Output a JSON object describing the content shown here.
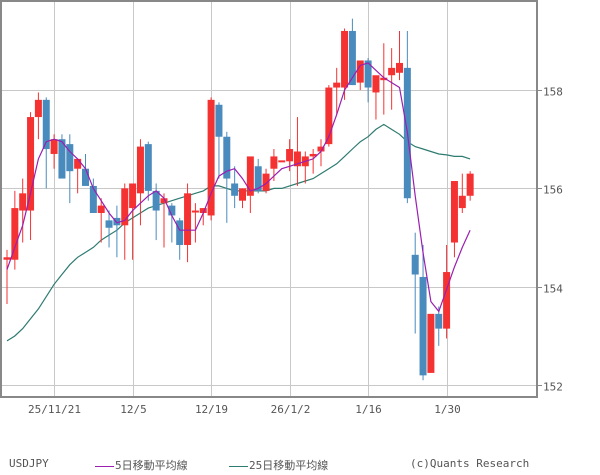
{
  "chart_data": {
    "type": "candlestick",
    "title": "USDJPY",
    "ylim": [
      151.8,
      160.0
    ],
    "y_ticks": [
      152,
      154,
      156,
      158
    ],
    "x_tick_labels": [
      {
        "label": "25/11/21",
        "index": 6
      },
      {
        "label": "12/5",
        "index": 16
      },
      {
        "label": "12/19",
        "index": 26
      },
      {
        "label": "26/1/2",
        "index": 36
      },
      {
        "label": "1/16",
        "index": 46
      },
      {
        "label": "1/30",
        "index": 56
      }
    ],
    "grid": true,
    "legend": [
      {
        "name": "5日移動平均線",
        "color": "#9a1fb0"
      },
      {
        "name": "25日移動平均線",
        "color": "#2e7b72"
      }
    ],
    "colors": {
      "up": "#f53232",
      "down": "#4a8bbd",
      "grid": "#c8c8c8",
      "axis": "#888888"
    },
    "candles": [
      {
        "o": 154.55,
        "h": 154.75,
        "l": 153.65,
        "c": 154.6
      },
      {
        "o": 154.55,
        "h": 155.95,
        "l": 154.35,
        "c": 155.6
      },
      {
        "o": 155.55,
        "h": 156.2,
        "l": 154.9,
        "c": 155.9
      },
      {
        "o": 155.55,
        "h": 157.55,
        "l": 154.95,
        "c": 157.45
      },
      {
        "o": 157.45,
        "h": 157.95,
        "l": 157.0,
        "c": 157.8
      },
      {
        "o": 157.8,
        "h": 157.85,
        "l": 156.0,
        "c": 156.8
      },
      {
        "o": 156.7,
        "h": 157.1,
        "l": 156.4,
        "c": 157.0
      },
      {
        "o": 157.0,
        "h": 157.1,
        "l": 156.25,
        "c": 156.2
      },
      {
        "o": 156.9,
        "h": 157.1,
        "l": 155.7,
        "c": 156.35
      },
      {
        "o": 156.4,
        "h": 156.6,
        "l": 155.9,
        "c": 156.6
      },
      {
        "o": 156.4,
        "h": 156.7,
        "l": 156.1,
        "c": 156.05
      },
      {
        "o": 156.05,
        "h": 156.2,
        "l": 155.55,
        "c": 155.5
      },
      {
        "o": 155.5,
        "h": 155.8,
        "l": 154.9,
        "c": 155.65
      },
      {
        "o": 155.35,
        "h": 155.55,
        "l": 154.8,
        "c": 155.2
      },
      {
        "o": 155.4,
        "h": 155.65,
        "l": 154.6,
        "c": 155.25
      },
      {
        "o": 155.25,
        "h": 156.1,
        "l": 154.55,
        "c": 156.0
      },
      {
        "o": 155.6,
        "h": 155.85,
        "l": 154.55,
        "c": 156.1
      },
      {
        "o": 155.9,
        "h": 157.0,
        "l": 155.25,
        "c": 156.85
      },
      {
        "o": 156.9,
        "h": 156.95,
        "l": 155.75,
        "c": 155.95
      },
      {
        "o": 155.95,
        "h": 156.1,
        "l": 154.95,
        "c": 155.55
      },
      {
        "o": 155.7,
        "h": 155.9,
        "l": 154.8,
        "c": 155.8
      },
      {
        "o": 155.65,
        "h": 155.7,
        "l": 154.9,
        "c": 155.45
      },
      {
        "o": 155.35,
        "h": 155.4,
        "l": 154.55,
        "c": 154.85
      },
      {
        "o": 154.85,
        "h": 156.1,
        "l": 154.5,
        "c": 155.9
      },
      {
        "o": 155.55,
        "h": 155.7,
        "l": 154.9,
        "c": 155.55
      },
      {
        "o": 155.5,
        "h": 155.6,
        "l": 155.25,
        "c": 155.6
      },
      {
        "o": 155.45,
        "h": 157.85,
        "l": 155.35,
        "c": 157.8
      },
      {
        "o": 157.7,
        "h": 157.75,
        "l": 156.2,
        "c": 157.05
      },
      {
        "o": 157.05,
        "h": 157.15,
        "l": 155.3,
        "c": 156.2
      },
      {
        "o": 156.1,
        "h": 156.45,
        "l": 155.6,
        "c": 155.85
      },
      {
        "o": 155.75,
        "h": 156.0,
        "l": 155.6,
        "c": 156.0
      },
      {
        "o": 155.85,
        "h": 156.55,
        "l": 155.5,
        "c": 156.65
      },
      {
        "o": 156.45,
        "h": 156.6,
        "l": 155.9,
        "c": 155.95
      },
      {
        "o": 155.95,
        "h": 156.4,
        "l": 155.9,
        "c": 156.3
      },
      {
        "o": 156.4,
        "h": 156.8,
        "l": 156.15,
        "c": 156.65
      },
      {
        "o": 156.55,
        "h": 156.55,
        "l": 156.55,
        "c": 156.57
      },
      {
        "o": 156.55,
        "h": 157.0,
        "l": 156.35,
        "c": 156.8
      },
      {
        "o": 156.45,
        "h": 157.45,
        "l": 156.05,
        "c": 156.75
      },
      {
        "o": 156.45,
        "h": 156.75,
        "l": 156.1,
        "c": 156.65
      },
      {
        "o": 156.65,
        "h": 156.8,
        "l": 156.3,
        "c": 156.7
      },
      {
        "o": 156.75,
        "h": 157.0,
        "l": 156.45,
        "c": 156.85
      },
      {
        "o": 156.9,
        "h": 158.1,
        "l": 156.85,
        "c": 158.05
      },
      {
        "o": 158.05,
        "h": 158.45,
        "l": 157.5,
        "c": 158.15
      },
      {
        "o": 158.05,
        "h": 159.25,
        "l": 157.8,
        "c": 159.2
      },
      {
        "o": 159.2,
        "h": 159.45,
        "l": 158.1,
        "c": 158.1
      },
      {
        "o": 158.15,
        "h": 158.55,
        "l": 158.0,
        "c": 158.6
      },
      {
        "o": 158.6,
        "h": 158.65,
        "l": 157.75,
        "c": 158.05
      },
      {
        "o": 157.95,
        "h": 158.2,
        "l": 157.4,
        "c": 158.3
      },
      {
        "o": 158.2,
        "h": 158.95,
        "l": 157.5,
        "c": 158.25
      },
      {
        "o": 158.3,
        "h": 158.85,
        "l": 157.6,
        "c": 158.45
      },
      {
        "o": 158.35,
        "h": 159.2,
        "l": 158.2,
        "c": 158.55
      },
      {
        "o": 158.45,
        "h": 159.2,
        "l": 155.7,
        "c": 155.8
      },
      {
        "o": 154.65,
        "h": 155.1,
        "l": 153.05,
        "c": 154.25
      },
      {
        "o": 154.2,
        "h": 154.85,
        "l": 152.1,
        "c": 152.2
      },
      {
        "o": 152.25,
        "h": 153.4,
        "l": 152.25,
        "c": 153.45
      },
      {
        "o": 153.45,
        "h": 153.6,
        "l": 152.8,
        "c": 153.15
      },
      {
        "o": 153.15,
        "h": 154.85,
        "l": 152.95,
        "c": 154.3
      },
      {
        "o": 154.9,
        "h": 156.0,
        "l": 154.6,
        "c": 156.15
      },
      {
        "o": 155.6,
        "h": 156.3,
        "l": 155.5,
        "c": 155.85
      },
      {
        "o": 155.85,
        "h": 156.35,
        "l": 155.75,
        "c": 156.3
      }
    ],
    "ma5": [
      154.35,
      154.8,
      155.25,
      155.9,
      156.6,
      156.95,
      157.0,
      156.95,
      156.75,
      156.6,
      156.4,
      156.0,
      155.75,
      155.5,
      155.3,
      155.35,
      155.55,
      155.7,
      155.85,
      155.95,
      155.8,
      155.45,
      155.15,
      155.15,
      155.15,
      155.5,
      155.9,
      156.25,
      156.35,
      156.4,
      156.2,
      155.95,
      156.0,
      156.1,
      156.25,
      156.4,
      156.45,
      156.5,
      156.55,
      156.6,
      156.75,
      157.05,
      157.5,
      158.0,
      158.25,
      158.5,
      158.55,
      158.4,
      158.25,
      158.15,
      158.05,
      157.15,
      155.85,
      154.7,
      153.7,
      153.5,
      153.95,
      154.4,
      154.8,
      155.15
    ],
    "ma25": [
      152.9,
      153.0,
      153.15,
      153.35,
      153.55,
      153.8,
      154.05,
      154.25,
      154.45,
      154.6,
      154.7,
      154.8,
      154.95,
      155.05,
      155.15,
      155.3,
      155.4,
      155.5,
      155.6,
      155.65,
      155.7,
      155.75,
      155.8,
      155.85,
      155.9,
      155.95,
      156.05,
      156.05,
      156.0,
      155.95,
      155.95,
      155.95,
      155.95,
      155.95,
      156.0,
      156.0,
      156.05,
      156.1,
      156.15,
      156.2,
      156.3,
      156.4,
      156.5,
      156.65,
      156.8,
      156.95,
      157.05,
      157.2,
      157.3,
      157.2,
      157.1,
      156.95,
      156.85,
      156.8,
      156.75,
      156.7,
      156.68,
      156.65,
      156.65,
      156.6
    ]
  },
  "axis": {
    "y_labels": [
      "152",
      "154",
      "156",
      "158"
    ],
    "x_labels": [
      "25/11/21",
      "12/5",
      "12/19",
      "26/1/2",
      "1/16",
      "1/30"
    ]
  },
  "legend": {
    "symbol": "USDJPY",
    "ma5_label": "5日移動平均線",
    "ma25_label": "25日移動平均線",
    "credit": "(c)Quants Research"
  }
}
